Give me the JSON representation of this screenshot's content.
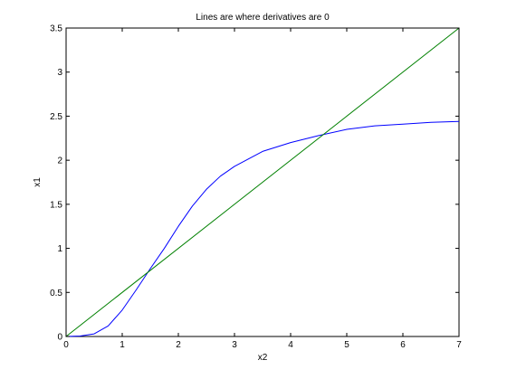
{
  "chart_data": {
    "type": "line",
    "title": "Lines are where derivatives are 0",
    "xlabel": "x2",
    "ylabel": "x1",
    "xlim": [
      0,
      7
    ],
    "ylim": [
      0,
      3.5
    ],
    "xticks": [
      0,
      1,
      2,
      3,
      4,
      5,
      6,
      7
    ],
    "xtick_labels": [
      "0",
      "1",
      "2",
      "3",
      "4",
      "5",
      "6",
      "7"
    ],
    "yticks": [
      0,
      0.5,
      1,
      1.5,
      2,
      2.5,
      3,
      3.5
    ],
    "ytick_labels": [
      "0",
      "0.5",
      "1",
      "1.5",
      "2",
      "2.5",
      "3",
      "3.5"
    ],
    "grid": false,
    "series": [
      {
        "color": "#0000ff",
        "x": [
          0,
          0.25,
          0.5,
          0.75,
          1.0,
          1.25,
          1.5,
          1.75,
          2.0,
          2.25,
          2.5,
          2.75,
          3.0,
          3.5,
          4.0,
          4.5,
          5.0,
          5.5,
          6.0,
          6.5,
          7.0
        ],
        "y": [
          0,
          0.005,
          0.03,
          0.12,
          0.3,
          0.53,
          0.77,
          1.0,
          1.25,
          1.48,
          1.67,
          1.82,
          1.93,
          2.1,
          2.2,
          2.28,
          2.35,
          2.39,
          2.41,
          2.43,
          2.44
        ]
      },
      {
        "color": "#008000",
        "x": [
          0,
          7
        ],
        "y": [
          0,
          3.5
        ]
      }
    ]
  }
}
